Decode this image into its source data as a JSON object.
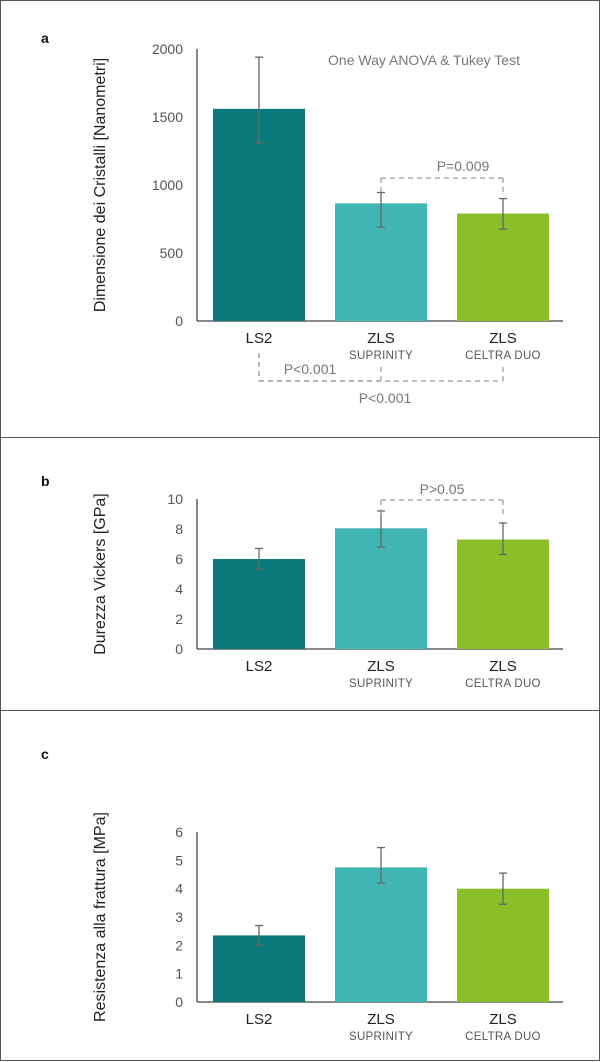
{
  "colors": {
    "ls2": "#0a7b7a",
    "suprinity": "#41b5b4",
    "celtra": "#8abf2a",
    "axis": "#444444",
    "text": "#555555",
    "annotation": "#777777",
    "dash": "#999999"
  },
  "chart_data": [
    {
      "panel_letter": "a",
      "type": "bar",
      "title": "One Way ANOVA & Tukey Test",
      "ylabel": "Dimensione dei Cristalli [Nanometri]",
      "ylim": [
        0,
        2000
      ],
      "yticks": [
        "0",
        "500",
        "1000",
        "1500",
        "2000"
      ],
      "categories": [
        {
          "name": "LS2",
          "sub": ""
        },
        {
          "name": "ZLS",
          "sub": "SUPRINITY"
        },
        {
          "name": "ZLS",
          "sub": "CELTRA DUO"
        }
      ],
      "values": [
        1560,
        865,
        790
      ],
      "error_low": [
        1310,
        690,
        675
      ],
      "error_high": [
        1940,
        945,
        900
      ],
      "annotations": [
        "P=0.009",
        "P<0.001",
        "P<0.001"
      ]
    },
    {
      "panel_letter": "b",
      "type": "bar",
      "ylabel": "Durezza Vickers [GPa]",
      "ylim": [
        0,
        10
      ],
      "yticks": [
        "0",
        "2",
        "4",
        "6",
        "8",
        "10"
      ],
      "categories": [
        {
          "name": "LS2",
          "sub": ""
        },
        {
          "name": "ZLS",
          "sub": "SUPRINITY"
        },
        {
          "name": "ZLS",
          "sub": "CELTRA DUO"
        }
      ],
      "values": [
        6.0,
        8.05,
        7.3
      ],
      "error_low": [
        5.3,
        6.8,
        6.3
      ],
      "error_high": [
        6.7,
        9.2,
        8.4
      ],
      "annotations": [
        "P>0.05"
      ]
    },
    {
      "panel_letter": "c",
      "type": "bar",
      "ylabel": "Resistenza alla frattura [MPa]",
      "ylim": [
        0,
        6
      ],
      "yticks": [
        "0",
        "1",
        "2",
        "3",
        "4",
        "5",
        "6"
      ],
      "categories": [
        {
          "name": "LS2",
          "sub": ""
        },
        {
          "name": "ZLS",
          "sub": "SUPRINITY"
        },
        {
          "name": "ZLS",
          "sub": "CELTRA DUO"
        }
      ],
      "values": [
        2.35,
        4.75,
        4.0
      ],
      "error_low": [
        2.0,
        4.2,
        3.45
      ],
      "error_high": [
        2.7,
        5.45,
        4.55
      ],
      "annotations": []
    }
  ]
}
